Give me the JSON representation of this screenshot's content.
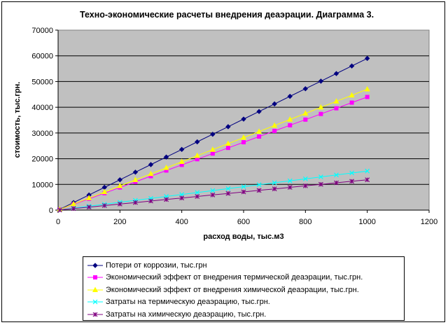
{
  "chart_data": {
    "type": "line",
    "title": "Техно-экономические расчеты внедрения деаэрации. Диаграмма 3.",
    "xlabel": "расход воды, тыс.м3",
    "ylabel": "стоимость, тыс.грн.",
    "xlim": [
      0,
      1200
    ],
    "ylim": [
      0,
      70000
    ],
    "x_ticks": [
      "0",
      "200",
      "400",
      "600",
      "800",
      "1000",
      "1200"
    ],
    "y_ticks": [
      "0",
      "10000",
      "20000",
      "30000",
      "40000",
      "50000",
      "60000",
      "70000"
    ],
    "grid": true,
    "plot_background": "#C0C0C0",
    "legend_position": "bottom",
    "x": [
      5,
      50,
      100,
      150,
      200,
      250,
      300,
      350,
      400,
      450,
      500,
      550,
      600,
      650,
      700,
      750,
      800,
      850,
      900,
      950,
      1000
    ],
    "series": [
      {
        "name": "Потери от коррозии, тыс.грн",
        "color": "#000080",
        "marker": "diamond",
        "values": [
          300,
          2950,
          5900,
          8850,
          11800,
          14750,
          17700,
          20650,
          23600,
          26550,
          29500,
          32450,
          35400,
          38350,
          41300,
          44250,
          47200,
          50150,
          53100,
          56050,
          59000
        ]
      },
      {
        "name": "Экономический эффект от внедрения термической деаэрации, тыс.грн.",
        "color": "#FF00FF",
        "marker": "square",
        "values": [
          220,
          2200,
          4400,
          6600,
          8800,
          11000,
          13200,
          15400,
          17600,
          19800,
          22000,
          24200,
          26400,
          28600,
          30800,
          33000,
          35200,
          37400,
          39600,
          41800,
          44000
        ]
      },
      {
        "name": "Экономический эффект от внедрения химической деаэрации, тыс.грн.",
        "color": "#FFFF00",
        "marker": "triangle",
        "values": [
          235,
          2350,
          4700,
          7050,
          9400,
          11750,
          14100,
          16450,
          18800,
          21150,
          23500,
          25850,
          28200,
          30550,
          32900,
          35250,
          37600,
          39950,
          42300,
          44650,
          47000
        ]
      },
      {
        "name": "Затраты на термическую деаэрацию, тыс.грн.",
        "color": "#00FFFF",
        "marker": "x",
        "values": [
          80,
          760,
          1520,
          2280,
          3040,
          3800,
          4560,
          5320,
          6080,
          6840,
          7600,
          8360,
          9120,
          9880,
          10640,
          11400,
          12160,
          12920,
          13680,
          14440,
          15200
        ]
      },
      {
        "name": "Затраты на химическую деаэрацию, тыс.грн.",
        "color": "#800080",
        "marker": "star",
        "values": [
          60,
          590,
          1180,
          1770,
          2360,
          2950,
          3540,
          4130,
          4720,
          5310,
          5900,
          6490,
          7080,
          7670,
          8260,
          8850,
          9440,
          10030,
          10620,
          11210,
          11800
        ]
      }
    ]
  }
}
